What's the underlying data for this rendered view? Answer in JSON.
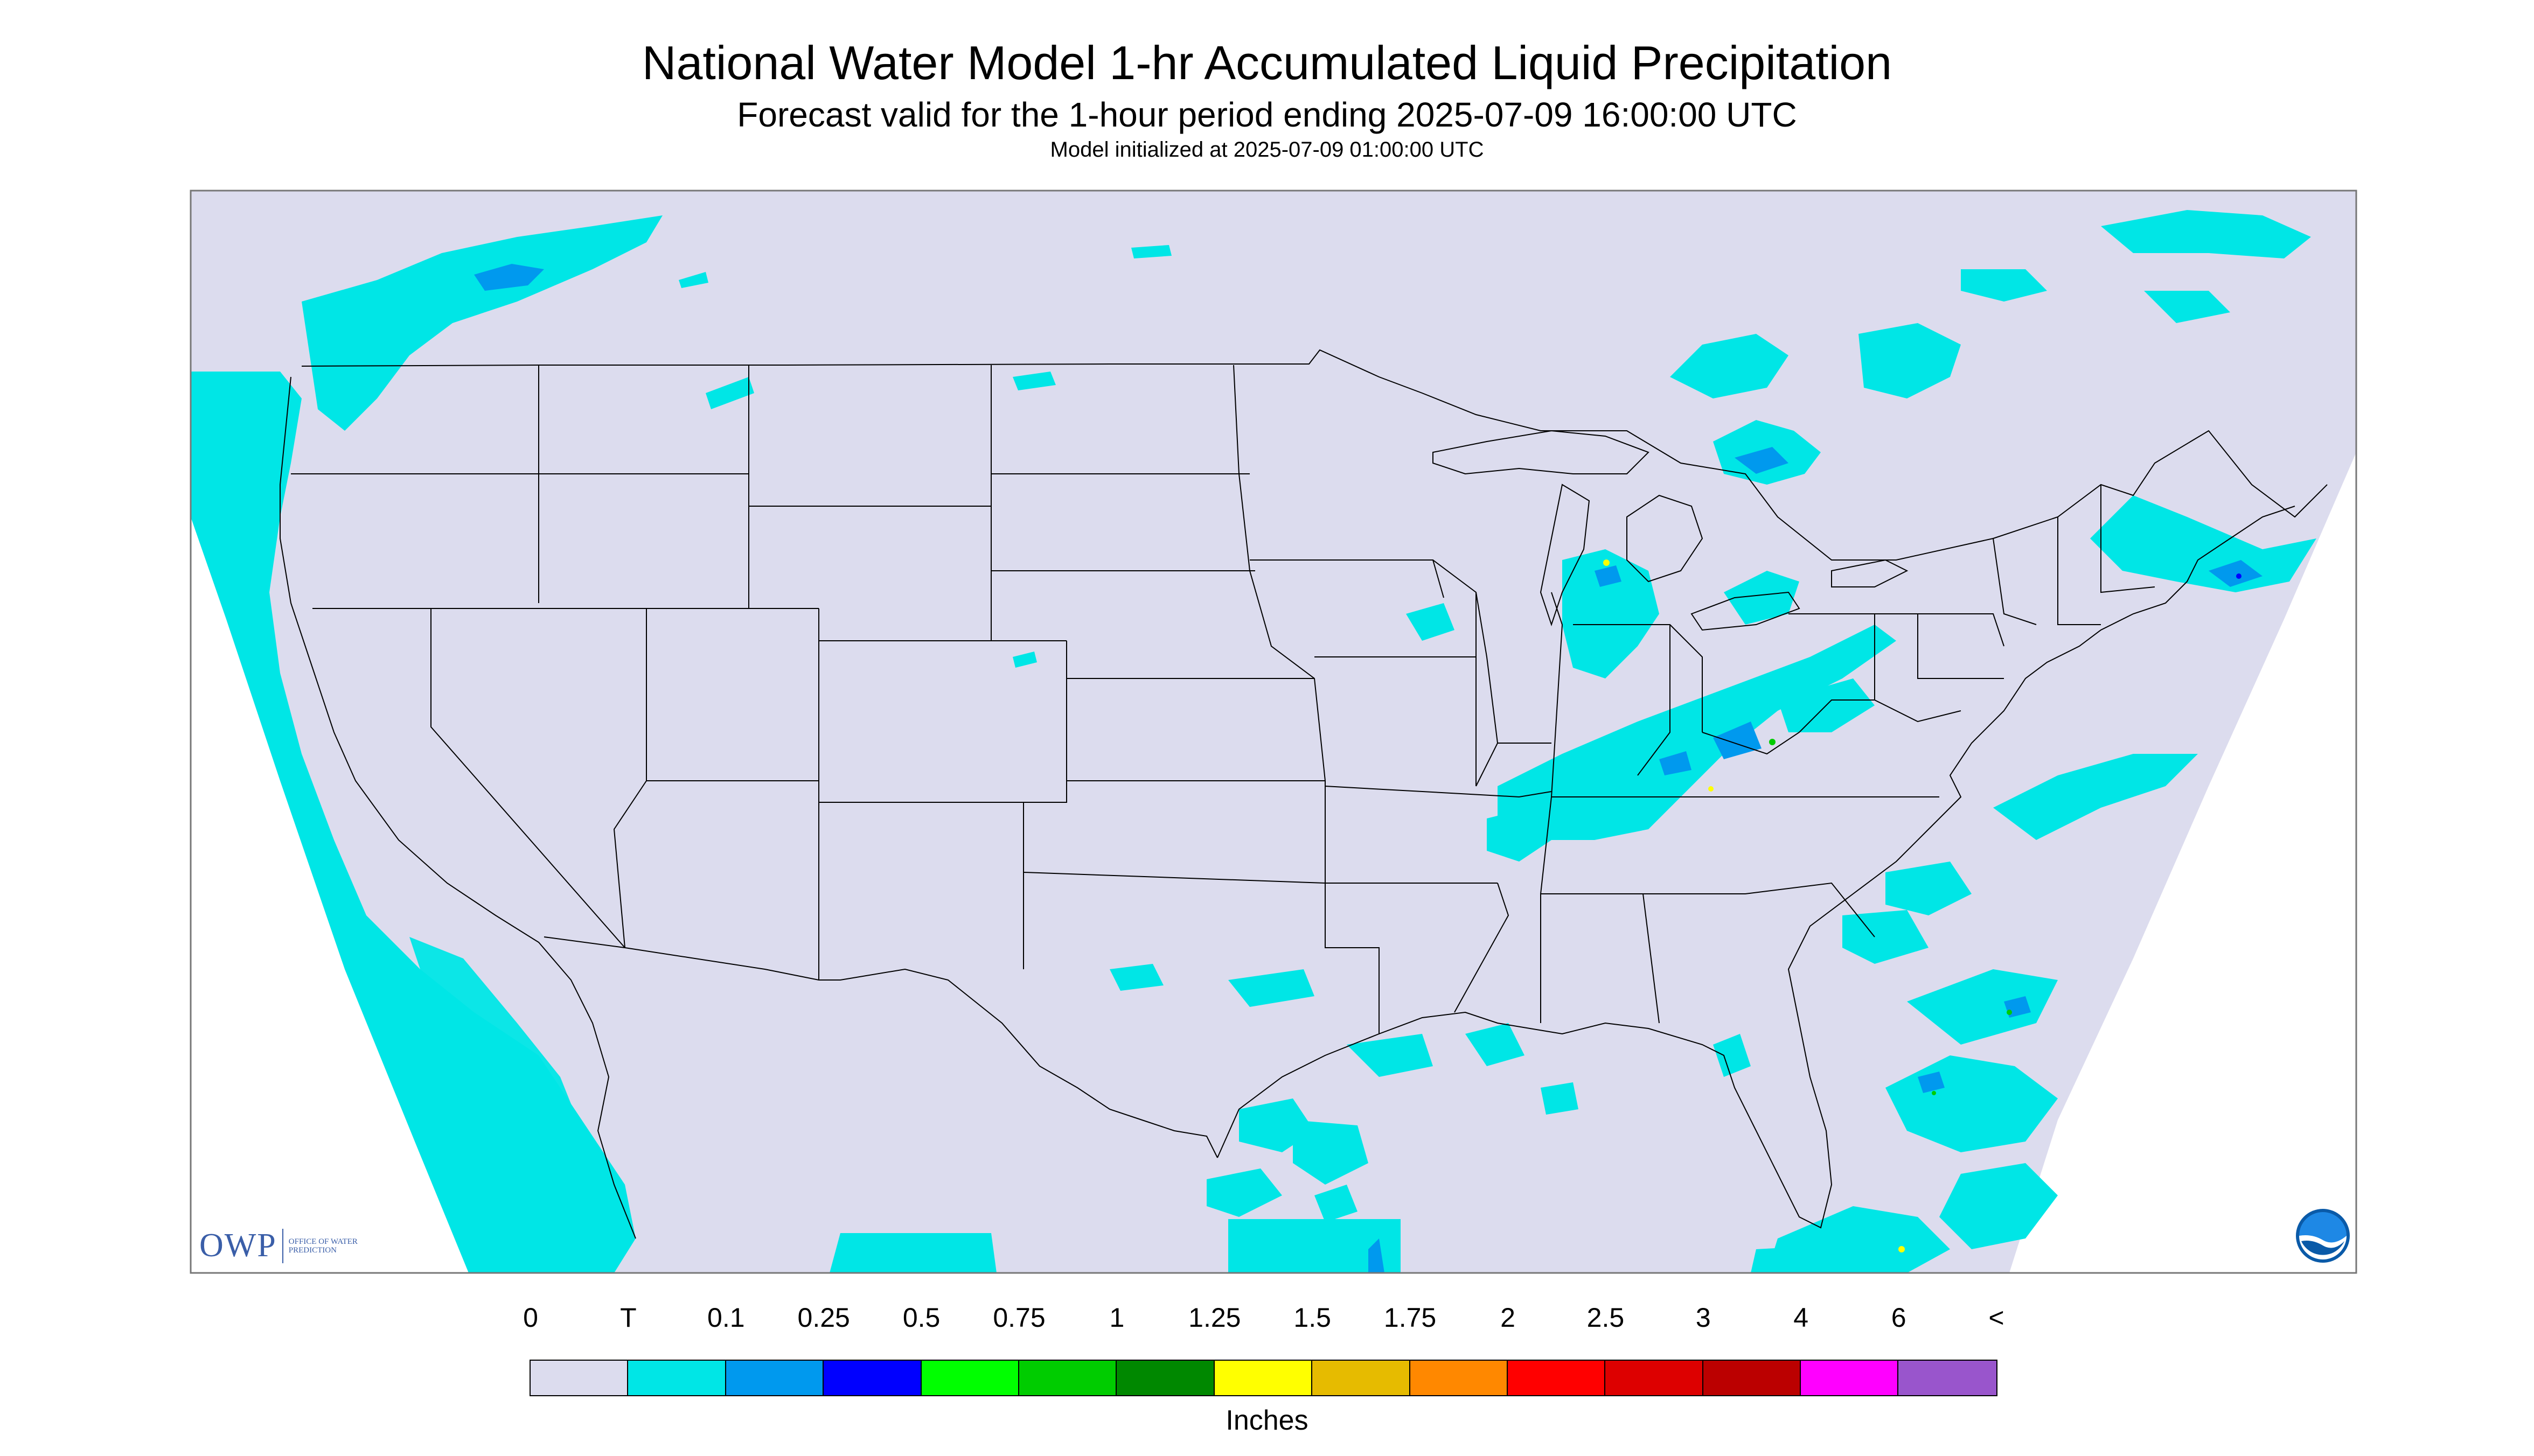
{
  "header": {
    "title": "National Water Model 1-hr Accumulated Liquid Precipitation",
    "subtitle": "Forecast valid for the 1-hour period ending 2025-07-09 16:00:00 UTC",
    "init": "Model initialized at 2025-07-09 01:00:00 UTC"
  },
  "legend": {
    "labels": [
      "0",
      "T",
      "0.1",
      "0.25",
      "0.5",
      "0.75",
      "1",
      "1.25",
      "1.5",
      "1.75",
      "2",
      "2.5",
      "3",
      "4",
      "6",
      "<"
    ],
    "colors": [
      "#dcdcee",
      "#00e6e6",
      "#0099ee",
      "#0000ff",
      "#00ff00",
      "#00cc00",
      "#008800",
      "#ffff00",
      "#e6bb00",
      "#ff8800",
      "#ff0000",
      "#dd0000",
      "#bb0000",
      "#ff00ff",
      "#9955cc"
    ],
    "units": "Inches"
  },
  "map": {
    "background": "#dcdcee",
    "precip_colors": {
      "trace": "#00e6e6",
      "light": "#0099ee",
      "moderate": "#0000ff",
      "heavy": "#00cc00",
      "very_heavy": "#ffff00"
    },
    "outline_color": "#000000"
  },
  "logos": {
    "owp_mark": "OWP",
    "owp_text": "OFFICE OF WATER PREDICTION",
    "noaa_text": "NOAA",
    "noaa_icon": "noaa-logo-icon"
  }
}
